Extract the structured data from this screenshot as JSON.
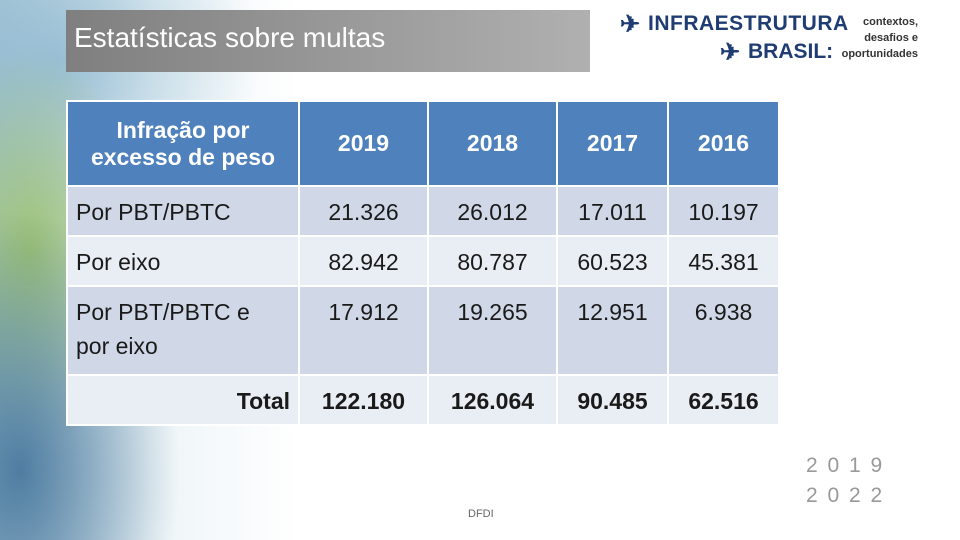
{
  "header": {
    "title": "Estatísticas sobre multas"
  },
  "logo": {
    "line1": "INFRAESTRUTURA",
    "line2": "BRASIL:",
    "tagline": "contextos,\ndesafios e\noportunidades"
  },
  "table": {
    "columns": [
      "Infração por\nexcesso de peso",
      "2019",
      "2018",
      "2017",
      "2016"
    ],
    "rows": [
      [
        "Por PBT/PBTC",
        "21.326",
        "26.012",
        "17.011",
        "10.197"
      ],
      [
        "Por eixo",
        "82.942",
        "80.787",
        "60.523",
        "45.381"
      ],
      [
        "Por PBT/PBTC e\npor eixo",
        "17.912",
        "19.265",
        "12.951",
        "6.938"
      ],
      [
        "Total",
        "122.180",
        "126.064",
        "90.485",
        "62.516"
      ]
    ]
  },
  "footer": {
    "note": "DFDI",
    "years_top": "2 0 1 9",
    "years_bottom": "2 0 2 2"
  }
}
